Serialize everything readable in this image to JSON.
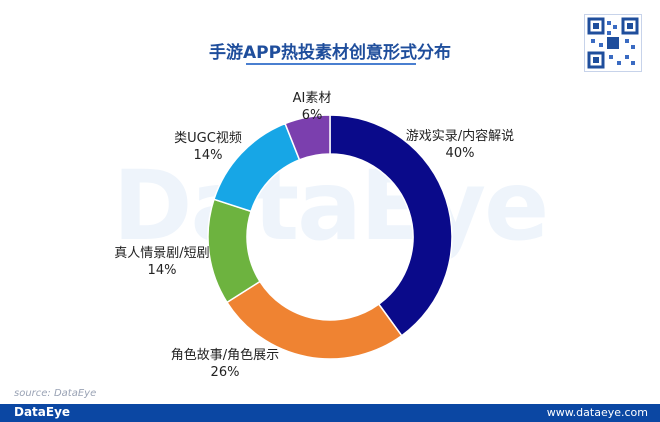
{
  "chart_data": {
    "type": "pie",
    "title": "手游APP热投素材创意形式分布",
    "slices": [
      {
        "name": "游戏实录/内容解说",
        "value": 40,
        "label": "40%",
        "color": "#0a0a8a"
      },
      {
        "name": "角色故事/角色展示",
        "value": 26,
        "label": "26%",
        "color": "#ef8332"
      },
      {
        "name": "真人情景剧/短剧",
        "value": 14,
        "label": "14%",
        "color": "#6db33f"
      },
      {
        "name": "类UGC视频",
        "value": 14,
        "label": "14%",
        "color": "#17a6e6"
      },
      {
        "name": "AI素材",
        "value": 6,
        "label": "6%",
        "color": "#7b3fae"
      }
    ]
  },
  "watermark": "DataEye",
  "source_text": "source: DataEye",
  "footer": {
    "logo": "DataEye",
    "url": "www.dataeye.com"
  }
}
